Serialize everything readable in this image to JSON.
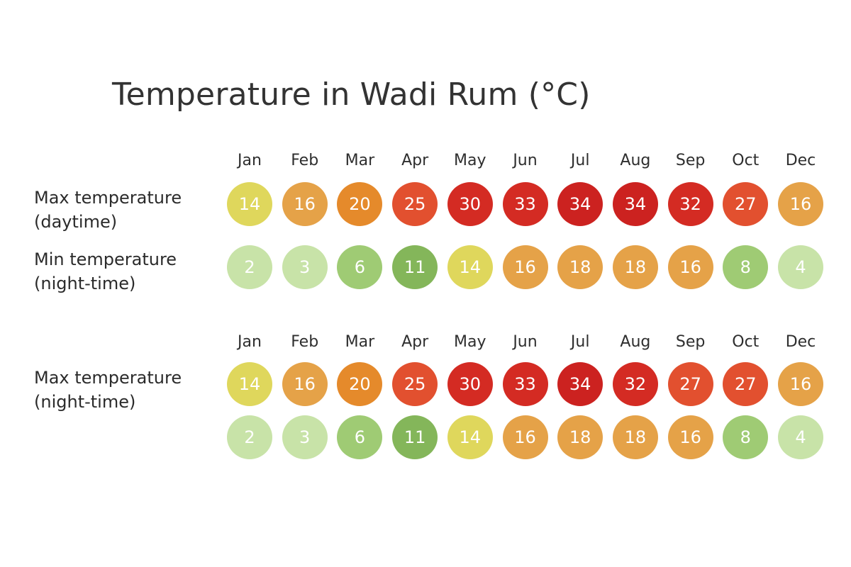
{
  "chart_data": {
    "type": "heatmap",
    "title": "Temperature in Wadi Rum (°C)",
    "months": [
      "Jan",
      "Feb",
      "Mar",
      "Apr",
      "May",
      "Jun",
      "Jul",
      "Aug",
      "Sep",
      "Oct",
      "Dec"
    ],
    "rows": [
      {
        "label_line1": "Max temperature",
        "label_line2": "(daytime)",
        "values": [
          14,
          16,
          20,
          25,
          30,
          33,
          34,
          34,
          32,
          27,
          16
        ]
      },
      {
        "label_line1": "Min temperature",
        "label_line2": "(night-time)",
        "values": [
          2,
          3,
          6,
          11,
          14,
          16,
          18,
          18,
          16,
          8,
          4
        ]
      },
      {
        "label_line1": "Max temperature",
        "label_line2": "(night-time)",
        "values": [
          14,
          16,
          20,
          25,
          30,
          33,
          34,
          32,
          27,
          27,
          16
        ]
      },
      {
        "label_line1": "",
        "label_line2": "",
        "values": [
          2,
          3,
          6,
          11,
          14,
          16,
          18,
          18,
          16,
          8,
          4
        ]
      }
    ],
    "color_scale": [
      {
        "value": 2,
        "color": "#c8e3a8"
      },
      {
        "value": 6,
        "color": "#9fcb74"
      },
      {
        "value": 11,
        "color": "#84b65a"
      },
      {
        "value": 14,
        "color": "#dfd75c"
      },
      {
        "value": 16,
        "color": "#e5a248"
      },
      {
        "value": 20,
        "color": "#e58a2b"
      },
      {
        "value": 25,
        "color": "#e2502f"
      },
      {
        "value": 30,
        "color": "#d42b23"
      },
      {
        "value": 34,
        "color": "#cc2220"
      }
    ]
  }
}
